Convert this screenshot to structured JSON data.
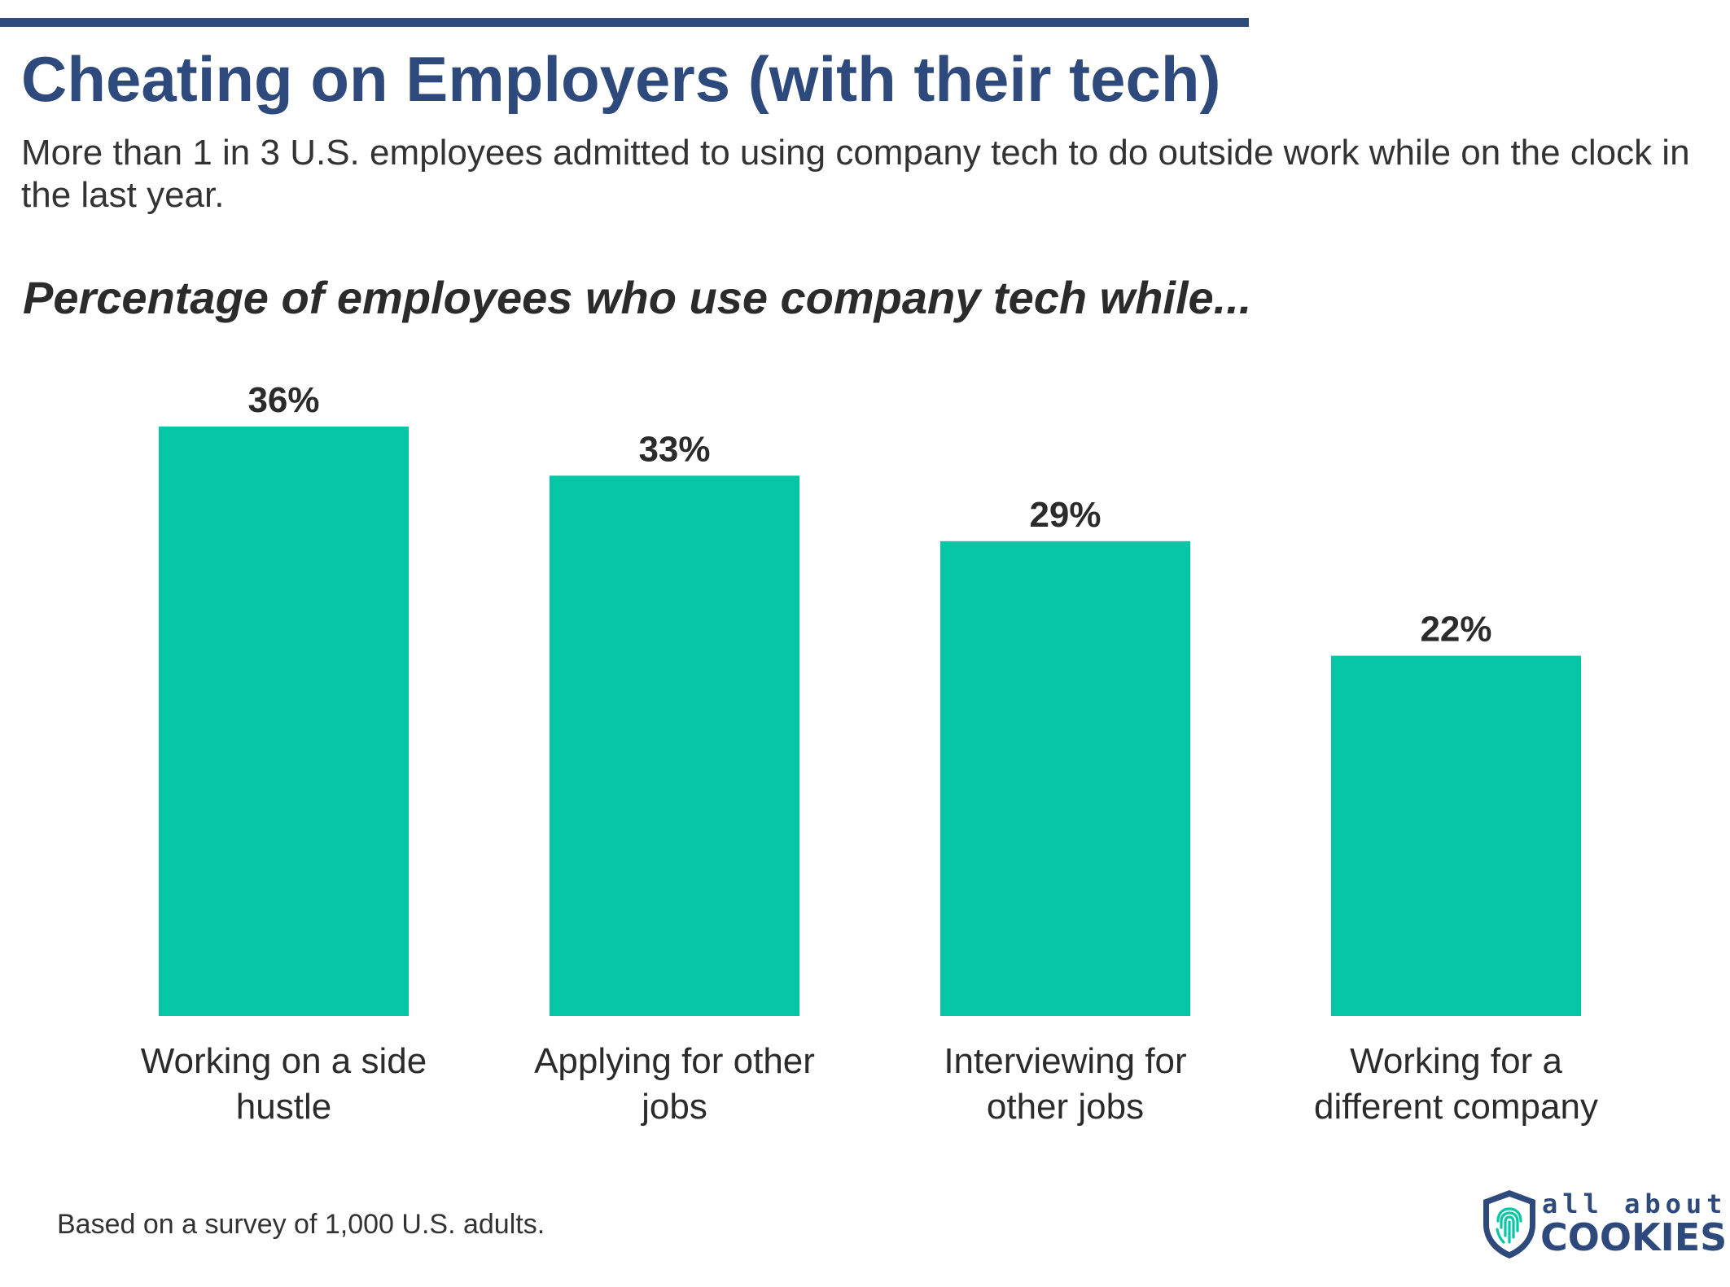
{
  "header": {
    "title": "Cheating on Employers (with their tech)",
    "subtitle": "More than 1 in 3 U.S. employees admitted to using company tech to do outside work while on the clock in the last year.",
    "chart_heading": "Percentage of employees who use company tech while..."
  },
  "chart_data": {
    "type": "bar",
    "title": "Percentage of employees who use company tech while...",
    "categories": [
      [
        "Working on a side",
        "hustle"
      ],
      [
        "Applying for other",
        "jobs"
      ],
      [
        "Interviewing for",
        "other jobs"
      ],
      [
        "Working for a",
        "different company"
      ]
    ],
    "values": [
      36,
      33,
      29,
      22
    ],
    "value_labels": [
      "36%",
      "33%",
      "29%",
      "22%"
    ],
    "unit": "%",
    "ylim": [
      0,
      36
    ],
    "xlabel": "",
    "ylabel": "",
    "grid": false,
    "bar_color": "#05c7a5"
  },
  "footer": {
    "note": "Based on a survey of 1,000 U.S. adults.",
    "logo": {
      "line1": "all about",
      "line2": "COOKIES"
    }
  },
  "colors": {
    "accent": "#2e4a7d",
    "bar": "#05c7a5",
    "text": "#2b2b2b"
  }
}
